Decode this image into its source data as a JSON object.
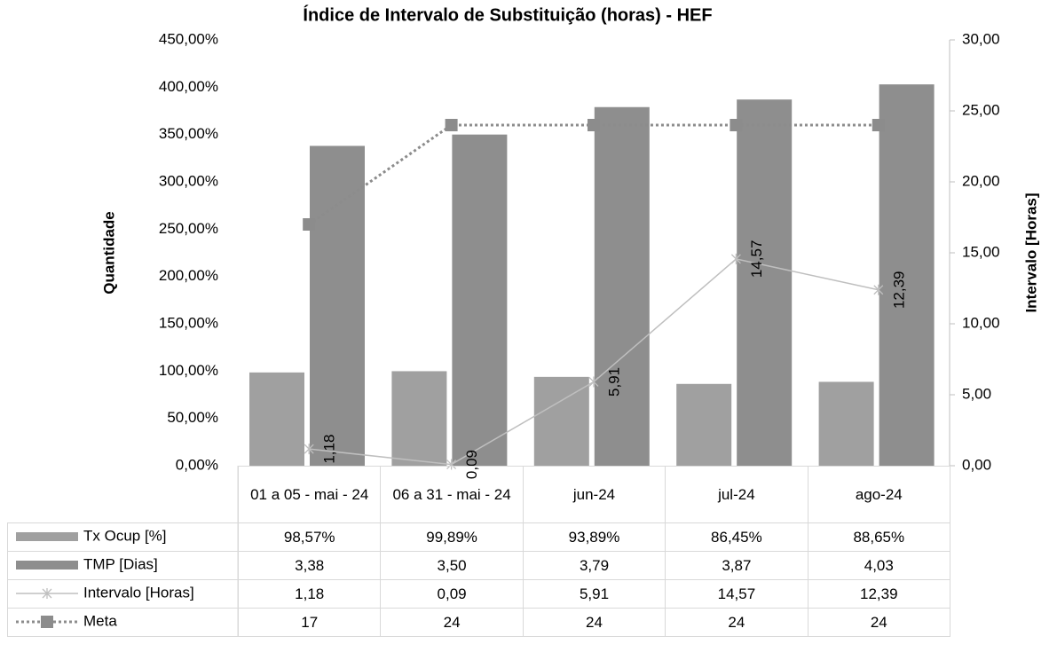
{
  "chart_data": {
    "type": "bar",
    "title": "Índice de Intervalo de Substituição (horas) - HEF",
    "y_label": "Quantidade",
    "y2_label": "Intervalo [Horas]",
    "categories": [
      "01 a 05 - mai - 24",
      "06 a 31 - mai - 24",
      "jun-24",
      "jul-24",
      "ago-24"
    ],
    "ylim": [
      0,
      4.5
    ],
    "yticks": [
      {
        "value": 0,
        "label": "0,00%"
      },
      {
        "value": 0.5,
        "label": "50,00%"
      },
      {
        "value": 1,
        "label": "100,00%"
      },
      {
        "value": 1.5,
        "label": "150,00%"
      },
      {
        "value": 2,
        "label": "200,00%"
      },
      {
        "value": 2.5,
        "label": "250,00%"
      },
      {
        "value": 3,
        "label": "300,00%"
      },
      {
        "value": 3.5,
        "label": "350,00%"
      },
      {
        "value": 4,
        "label": "400,00%"
      },
      {
        "value": 4.5,
        "label": "450,00%"
      }
    ],
    "y2lim": [
      0,
      30
    ],
    "y2ticks": [
      {
        "value": 0,
        "label": "0,00"
      },
      {
        "value": 5,
        "label": "5,00"
      },
      {
        "value": 10,
        "label": "10,00"
      },
      {
        "value": 15,
        "label": "15,00"
      },
      {
        "value": 20,
        "label": "20,00"
      },
      {
        "value": 25,
        "label": "25,00"
      },
      {
        "value": 30,
        "label": "30,00"
      }
    ],
    "series": [
      {
        "name": "Tx Ocup [%]",
        "type": "bar",
        "color": "#a0a0a0",
        "values": [
          0.9857,
          0.9989,
          0.9389,
          0.8645,
          0.8865
        ],
        "value_labels": [
          "98,57%",
          "99,89%",
          "93,89%",
          "86,45%",
          "88,65%"
        ]
      },
      {
        "name": "TMP [Dias]",
        "type": "bar",
        "color": "#8e8e8e",
        "values": [
          3.38,
          3.5,
          3.79,
          3.87,
          4.03
        ],
        "value_labels": [
          "3,38",
          "3,50",
          "3,79",
          "3,87",
          "4,03"
        ]
      },
      {
        "name": "Intervalo [Horas]",
        "type": "line",
        "axis": "y2",
        "color": "#bfbfbf",
        "marker": "star",
        "values": [
          1.18,
          0.09,
          5.91,
          14.57,
          12.39
        ],
        "value_labels": [
          "1,18",
          "0,09",
          "5,91",
          "14,57",
          "12,39"
        ]
      },
      {
        "name": "Meta",
        "type": "line",
        "axis": "y2",
        "color": "#8c8c8c",
        "marker": "square",
        "dash": "dotted",
        "values": [
          17,
          24,
          24,
          24,
          24
        ]
      }
    ]
  }
}
